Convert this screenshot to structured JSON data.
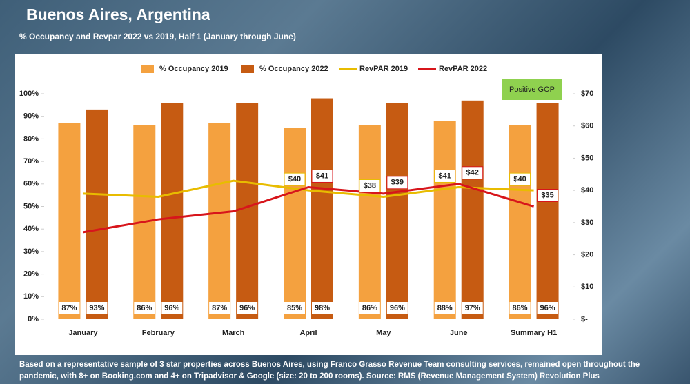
{
  "chart_data": {
    "type": "bar",
    "title": "Buenos Aires, Argentina",
    "subtitle": "% Occupancy and Revpar 2022 vs 2019, Half 1 (January through June)",
    "annotation": "Positive GOP",
    "footnote": "Based on a representative sample of 3 star properties across Buenos Aires, using Franco Grasso Revenue Team consulting services, remained open throughout the pandemic, with 8+ on Booking.com and 4+ on Tripadvisor & Google (size: 20 to 200 rooms). Source: RMS (Revenue Management System) Revolution Plus",
    "categories": [
      "January",
      "February",
      "March",
      "April",
      "May",
      "June",
      "Summary H1"
    ],
    "series": [
      {
        "name": "% Occupancy 2019",
        "type": "bar",
        "color": "#f4a13f",
        "values": [
          87,
          86,
          87,
          85,
          86,
          88,
          86
        ],
        "value_labels": [
          "87%",
          "86%",
          "87%",
          "85%",
          "86%",
          "88%",
          "86%"
        ]
      },
      {
        "name": "% Occupancy 2022",
        "type": "bar",
        "color": "#c65b12",
        "values": [
          93,
          96,
          96,
          98,
          96,
          97,
          96
        ],
        "value_labels": [
          "93%",
          "96%",
          "96%",
          "98%",
          "96%",
          "97%",
          "96%"
        ]
      },
      {
        "name": "RevPAR 2019",
        "type": "line",
        "axis": "y2",
        "color": "#e8bc00",
        "values": [
          39,
          38,
          43,
          40,
          38,
          41,
          40
        ],
        "value_labels": [
          null,
          null,
          null,
          "$40",
          "$38",
          "$41",
          "$40"
        ]
      },
      {
        "name": "RevPAR 2022",
        "type": "line",
        "axis": "y2",
        "color": "#d7151b",
        "values": [
          27,
          31,
          33.5,
          41,
          39,
          42,
          35
        ],
        "value_labels": [
          null,
          null,
          null,
          "$41",
          "$39",
          "$42",
          "$35"
        ]
      }
    ],
    "ylim": [
      0,
      100
    ],
    "yticks": [
      {
        "value": 0,
        "label": "0%"
      },
      {
        "value": 10,
        "label": "10%"
      },
      {
        "value": 20,
        "label": "20%"
      },
      {
        "value": 30,
        "label": "30%"
      },
      {
        "value": 40,
        "label": "40%"
      },
      {
        "value": 50,
        "label": "50%"
      },
      {
        "value": 60,
        "label": "60%"
      },
      {
        "value": 70,
        "label": "70%"
      },
      {
        "value": 80,
        "label": "80%"
      },
      {
        "value": 90,
        "label": "90%"
      },
      {
        "value": 100,
        "label": "100%"
      }
    ],
    "y2lim": [
      0,
      70
    ],
    "y2ticks": [
      {
        "value": 0,
        "label": "$-"
      },
      {
        "value": 10,
        "label": "$10"
      },
      {
        "value": 20,
        "label": "$20"
      },
      {
        "value": 30,
        "label": "$30"
      },
      {
        "value": 40,
        "label": "$40"
      },
      {
        "value": 50,
        "label": "$50"
      },
      {
        "value": 60,
        "label": "$60"
      },
      {
        "value": 70,
        "label": "$70"
      }
    ],
    "legend": "top"
  }
}
